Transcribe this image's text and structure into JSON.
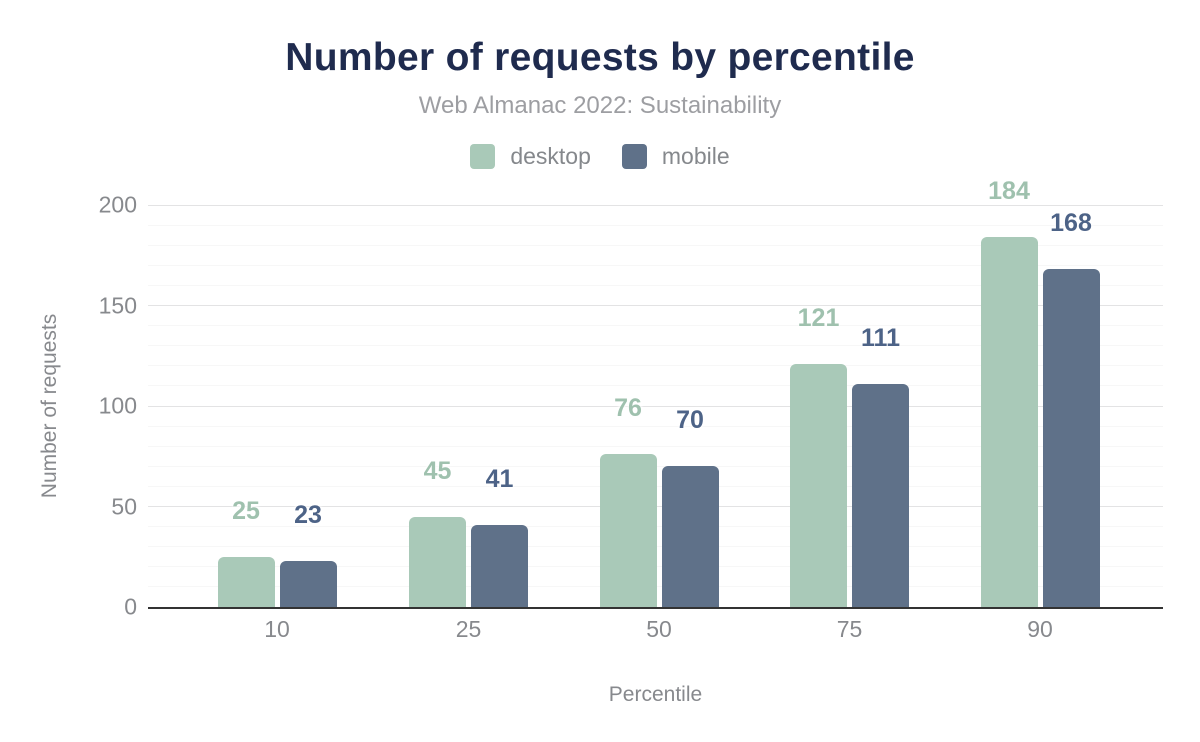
{
  "chart_data": {
    "type": "bar",
    "title": "Number of requests by percentile",
    "subtitle": "Web Almanac 2022: Sustainability",
    "xlabel": "Percentile",
    "ylabel": "Number of requests",
    "categories": [
      "10",
      "25",
      "50",
      "75",
      "90"
    ],
    "series": [
      {
        "name": "desktop",
        "values": [
          25,
          45,
          76,
          121,
          184
        ],
        "bar_color": "#a9c9b8",
        "label_color": "#9fc1ae"
      },
      {
        "name": "mobile",
        "values": [
          23,
          41,
          70,
          111,
          168
        ],
        "bar_color": "#5f7189",
        "label_color": "#4d6387"
      }
    ],
    "ylim": [
      0,
      200
    ],
    "yticks": [
      0,
      50,
      100,
      150,
      200
    ],
    "minor_grid_step": 10,
    "major_grid_step": 50,
    "grid": "horizontal",
    "legend_position": "top",
    "data_labels": true
  },
  "colors": {
    "title": "#1f2b4e",
    "subtitle": "#9d9ea2",
    "legend_text": "#85888c",
    "axis_text": "#87898d",
    "axis_line": "#333333",
    "grid_major": "#e3e3e4",
    "grid_minor": "#f7f7f7"
  }
}
